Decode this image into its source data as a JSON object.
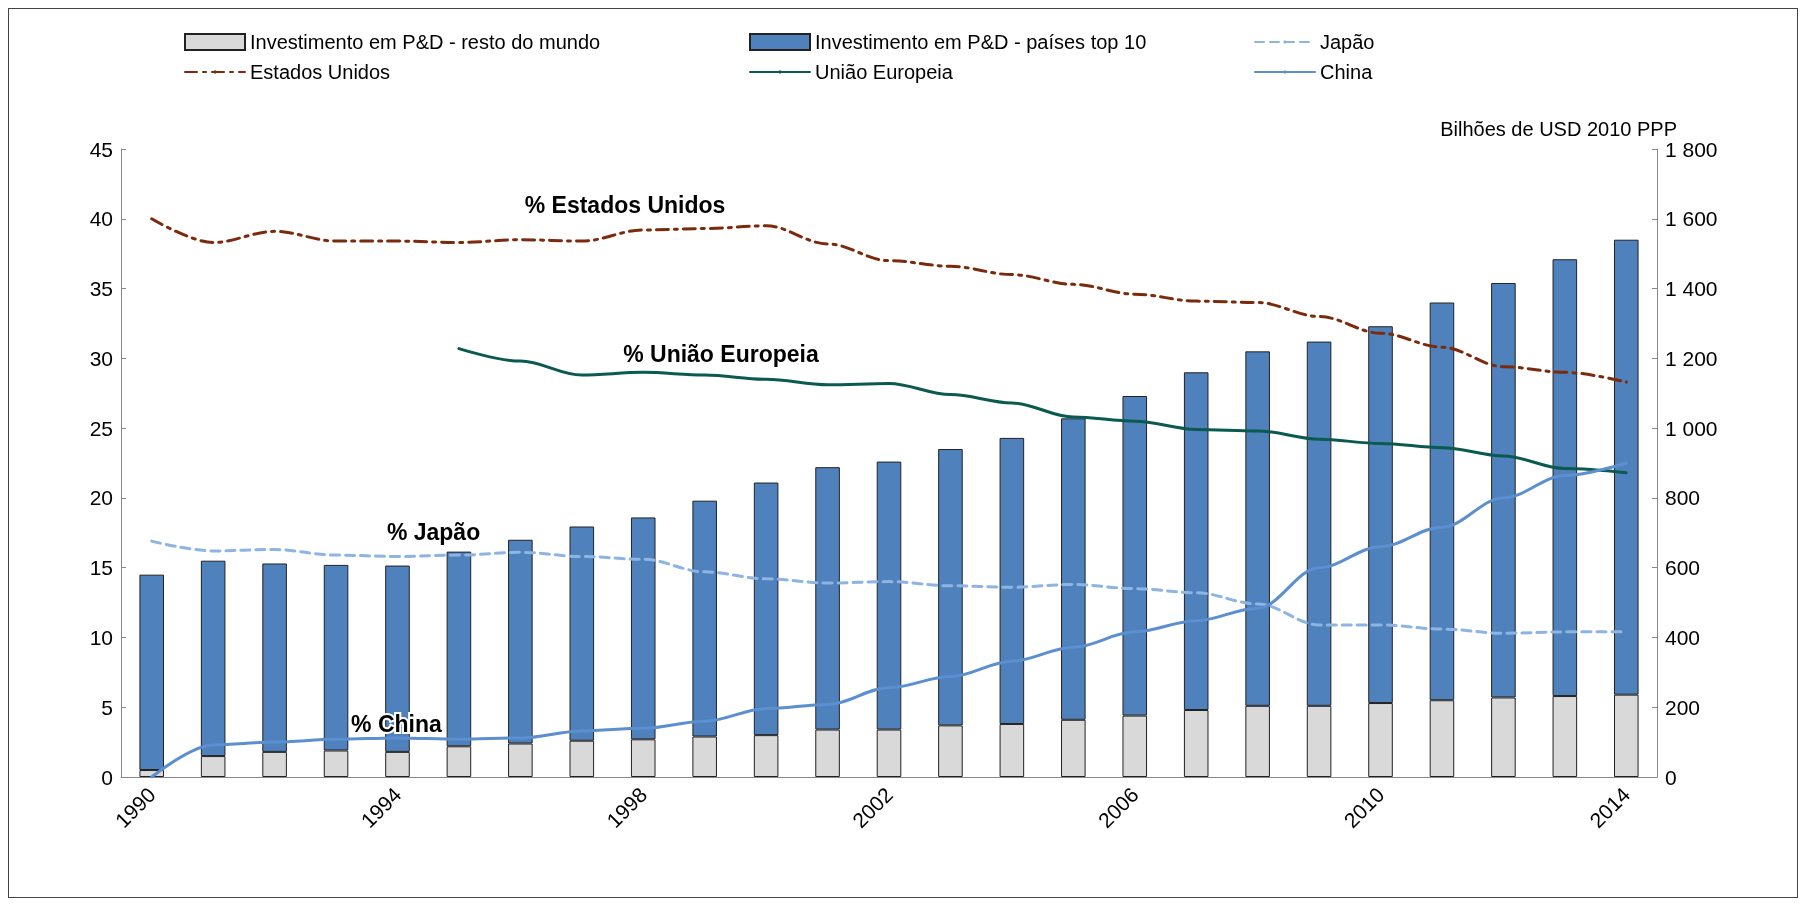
{
  "chart_data": {
    "type": "bar",
    "stacked": true,
    "categories": [
      "1990",
      null,
      null,
      null,
      "1994",
      null,
      null,
      null,
      "1998",
      null,
      null,
      null,
      "2002",
      null,
      null,
      null,
      "2006",
      null,
      null,
      null,
      "2010",
      null,
      null,
      null,
      "2014"
    ],
    "ylim": [
      0,
      45
    ],
    "yticks": [
      0,
      5,
      10,
      15,
      20,
      25,
      30,
      35,
      40,
      45
    ],
    "y2label": "Bilhões de USD 2010 PPP",
    "y2lim": [
      0,
      1800
    ],
    "y2ticks": [
      0,
      200,
      400,
      600,
      800,
      {
        "value": 1000,
        "label": "1 000"
      },
      {
        "value": 1200,
        "label": "1 200"
      },
      {
        "value": 1400,
        "label": "1 400"
      },
      {
        "value": 1600,
        "label": "1 600"
      },
      {
        "value": 1800,
        "label": "1 800"
      }
    ],
    "grid": false,
    "legend": "top",
    "marker": "none",
    "series": [
      {
        "name": "Investimento em P&D - resto do mundo",
        "axis": "y2",
        "color": "#d9d9d9",
        "values": [
          20,
          60,
          72,
          76,
          72,
          88,
          96,
          104,
          108,
          116,
          120,
          136,
          136,
          148,
          152,
          164,
          176,
          192,
          204,
          204,
          212,
          220,
          228,
          232,
          236
        ]
      },
      {
        "name": "Investimento em P&D - países top 10",
        "axis": "y2",
        "color": "#4f81bd",
        "values": [
          560,
          560,
          540,
          532,
          534,
          558,
          584,
          614,
          636,
          676,
          724,
          752,
          768,
          792,
          820,
          864,
          916,
          968,
          1016,
          1044,
          1080,
          1140,
          1188,
          1252,
          1304
        ]
      },
      {
        "name": "Japão",
        "type": "line",
        "line_style": "dashed",
        "color": "#8db4e2",
        "values": [
          16.9,
          16.2,
          16.3,
          15.9,
          15.8,
          15.9,
          16.1,
          15.8,
          15.6,
          14.7,
          14.2,
          13.9,
          14.0,
          13.7,
          13.6,
          13.8,
          13.5,
          13.2,
          12.4,
          10.9,
          10.9,
          10.6,
          10.3,
          10.4,
          10.4
        ]
      },
      {
        "name": "Estados Unidos",
        "type": "line",
        "line_style": "dashdot",
        "color": "#7b2a0c",
        "values": [
          40,
          38.3,
          39.1,
          38.4,
          38.4,
          38.3,
          38.5,
          38.4,
          39.2,
          39.3,
          39.5,
          38.2,
          37.0,
          36.6,
          36.0,
          35.3,
          34.6,
          34.1,
          34.0,
          33.0,
          31.8,
          30.8,
          29.4,
          29.0,
          28.3
        ]
      },
      {
        "name": "União Europeia",
        "type": "line",
        "line_style": "solid",
        "color": "#0b5a4f",
        "values": [
          null,
          null,
          null,
          null,
          null,
          30.7,
          29.8,
          28.8,
          29.0,
          28.8,
          28.5,
          28.1,
          28.2,
          27.4,
          26.8,
          25.8,
          25.5,
          24.9,
          24.8,
          24.2,
          23.9,
          23.6,
          23.0,
          22.1,
          21.8
        ]
      },
      {
        "name": "China",
        "type": "line",
        "line_style": "solid",
        "color": "#5b8fd0",
        "values": [
          0,
          2.3,
          2.5,
          2.7,
          2.8,
          2.7,
          2.8,
          3.3,
          3.5,
          4.0,
          4.9,
          5.2,
          6.4,
          7.2,
          8.3,
          9.3,
          10.4,
          11.2,
          12.1,
          15.0,
          16.5,
          17.9,
          20.0,
          21.6,
          22.5
        ]
      }
    ],
    "annotations": [
      "% Estados Unidos",
      "% União Europeia",
      "% Japão",
      "% China"
    ]
  }
}
